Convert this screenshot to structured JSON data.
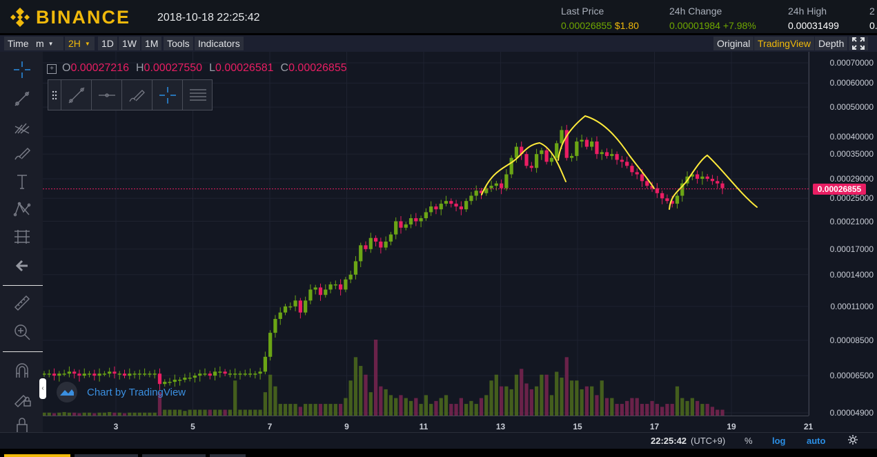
{
  "header": {
    "logo_text": "BINANCE",
    "datetime": "2018-10-18 22:25:42",
    "stats": [
      {
        "label": "Last Price",
        "value": "0.00026855",
        "extra": "$1.80"
      },
      {
        "label": "24h Change",
        "value": "0.00001984",
        "extra": "+7.98%"
      },
      {
        "label": "24h High",
        "value": "0.00031499",
        "extra": ""
      },
      {
        "label": "2",
        "value": "0.",
        "extra": ""
      }
    ]
  },
  "toolbar": {
    "left_buttons": [
      {
        "label": "Time",
        "active": false
      },
      {
        "label": "m",
        "active": false,
        "dropdown": true
      },
      {
        "label": "2H",
        "active": true,
        "dropdown": true
      },
      {
        "label": "1D",
        "active": false
      },
      {
        "label": "1W",
        "active": false
      },
      {
        "label": "1M",
        "active": false
      },
      {
        "label": "Tools",
        "active": false
      },
      {
        "label": "Indicators",
        "active": false
      }
    ],
    "right_buttons": [
      {
        "label": "Original",
        "active": false
      },
      {
        "label": "TradingView",
        "active": true
      },
      {
        "label": "Depth",
        "active": false
      }
    ],
    "fullscreen_icon": "fullscreen-icon"
  },
  "left_tools": [
    "crosshair-icon",
    "trendline-icon",
    "pitchfork-icon",
    "brush-icon",
    "text-icon",
    "pattern-icon",
    "fib-icon",
    "back-arrow-icon",
    "ruler-icon",
    "zoom-in-icon",
    "magnet-icon",
    "lock-draw-icon",
    "lock-icon",
    "chevron-down-icon"
  ],
  "ohlc": {
    "o_label": "O",
    "o": "0.00027216",
    "h_label": "H",
    "h": "0.00027550",
    "l_label": "L",
    "l": "0.00026581",
    "c_label": "C",
    "c": "0.00026855"
  },
  "drawing_panel": [
    "drag-handle-icon",
    "trendline-icon",
    "horizontal-line-icon",
    "brush-icon",
    "crosshair-icon",
    "fib-levels-icon"
  ],
  "watermark": "Chart by TradingView",
  "bottom": {
    "time": "22:25:42",
    "tz": "(UTC+9)",
    "percent": "%",
    "log": "log",
    "auto": "auto",
    "settings_icon": "gear-icon"
  },
  "chart_data": {
    "type": "candlestick",
    "price_scale": "log",
    "price_ticks": [
      "0.00070000",
      "0.00060000",
      "0.00050000",
      "0.00040000",
      "0.00035000",
      "0.00029000",
      "0.00025000",
      "0.00021000",
      "0.00017000",
      "0.00014000",
      "0.00011000",
      "0.00008500",
      "0.00006500",
      "0.00004900"
    ],
    "x_ticks": [
      "3",
      "5",
      "7",
      "9",
      "11",
      "13",
      "15",
      "17",
      "19",
      "21"
    ],
    "last_price": "0.00026855",
    "up_color": "#6ba515",
    "down_color": "#e91e63",
    "annotation_color": "#ffeb3b",
    "grid": true,
    "series_close": [
      6.6,
      6.6,
      6.5,
      6.6,
      6.6,
      6.7,
      6.6,
      6.5,
      6.6,
      6.6,
      6.5,
      6.6,
      6.6,
      6.7,
      6.6,
      6.6,
      6.5,
      6.6,
      6.6,
      6.6,
      6.6,
      6.6,
      6.6,
      6.1,
      6.2,
      6.2,
      6.3,
      6.3,
      6.4,
      6.4,
      6.5,
      6.6,
      6.6,
      6.5,
      6.7,
      6.7,
      6.6,
      6.6,
      6.6,
      6.6,
      6.6,
      6.6,
      6.6,
      6.7,
      7.5,
      9.0,
      10.0,
      10.5,
      11.0,
      11.0,
      11.5,
      10.5,
      11.5,
      12.5,
      12.7,
      12.0,
      12.5,
      13.0,
      13.0,
      12.5,
      13.5,
      14.0,
      15.5,
      17.5,
      17.0,
      18.5,
      18.0,
      17.2,
      18.0,
      19.0,
      21.0,
      20.0,
      20.5,
      21.5,
      21.0,
      21.5,
      22.5,
      23.5,
      23.0,
      24.0,
      24.5,
      24.0,
      23.5,
      23.0,
      24.5,
      25.5,
      26.5,
      26.0,
      27.0,
      27.5,
      28.0,
      27.0,
      30.0,
      34.0,
      37.0,
      35.0,
      32.0,
      31.5,
      35.0,
      36.0,
      33.0,
      34.0,
      38.0,
      42.0,
      34.0,
      34.5,
      38.5,
      39.0,
      37.0,
      38.5,
      35.0,
      35.5,
      34.5,
      35.0,
      33.5,
      33.0,
      32.0,
      30.5,
      30.0,
      28.5,
      27.5,
      27.0,
      26.0,
      25.0,
      24.5,
      24.0,
      25.5,
      28.0,
      29.5,
      30.0,
      29.0,
      29.5,
      29.0,
      28.5,
      28.0,
      27.0
    ],
    "volume_relative": [
      0.05,
      0.05,
      0.04,
      0.05,
      0.06,
      0.05,
      0.05,
      0.04,
      0.05,
      0.05,
      0.04,
      0.05,
      0.05,
      0.06,
      0.05,
      0.05,
      0.04,
      0.05,
      0.05,
      0.05,
      0.05,
      0.05,
      0.05,
      0.4,
      0.1,
      0.1,
      0.1,
      0.1,
      0.08,
      0.1,
      0.1,
      0.1,
      0.1,
      0.1,
      0.1,
      0.1,
      0.1,
      0.1,
      0.6,
      0.1,
      0.1,
      0.1,
      0.1,
      0.1,
      0.4,
      0.7,
      0.5,
      0.2,
      0.2,
      0.2,
      0.2,
      0.15,
      0.2,
      0.2,
      0.2,
      0.2,
      0.2,
      0.2,
      0.2,
      0.2,
      0.3,
      0.6,
      1.0,
      0.85,
      0.7,
      0.4,
      1.3,
      0.5,
      0.45,
      0.35,
      0.3,
      0.35,
      0.3,
      0.25,
      0.3,
      0.2,
      0.35,
      0.2,
      0.25,
      0.3,
      0.35,
      0.2,
      0.2,
      0.3,
      0.2,
      0.25,
      0.2,
      0.3,
      0.35,
      0.6,
      0.7,
      0.5,
      0.5,
      0.45,
      0.7,
      0.8,
      0.55,
      0.45,
      0.5,
      0.7,
      0.7,
      0.35,
      0.75,
      0.65,
      1.0,
      0.6,
      0.6,
      0.45,
      0.5,
      0.5,
      0.35,
      0.6,
      0.3,
      0.3,
      0.2,
      0.2,
      0.25,
      0.3,
      0.3,
      0.2,
      0.2,
      0.25,
      0.2,
      0.15,
      0.2,
      0.2,
      0.5,
      0.3,
      0.25,
      0.3,
      0.25,
      0.2,
      0.2,
      0.15,
      0.1,
      0.1
    ]
  }
}
